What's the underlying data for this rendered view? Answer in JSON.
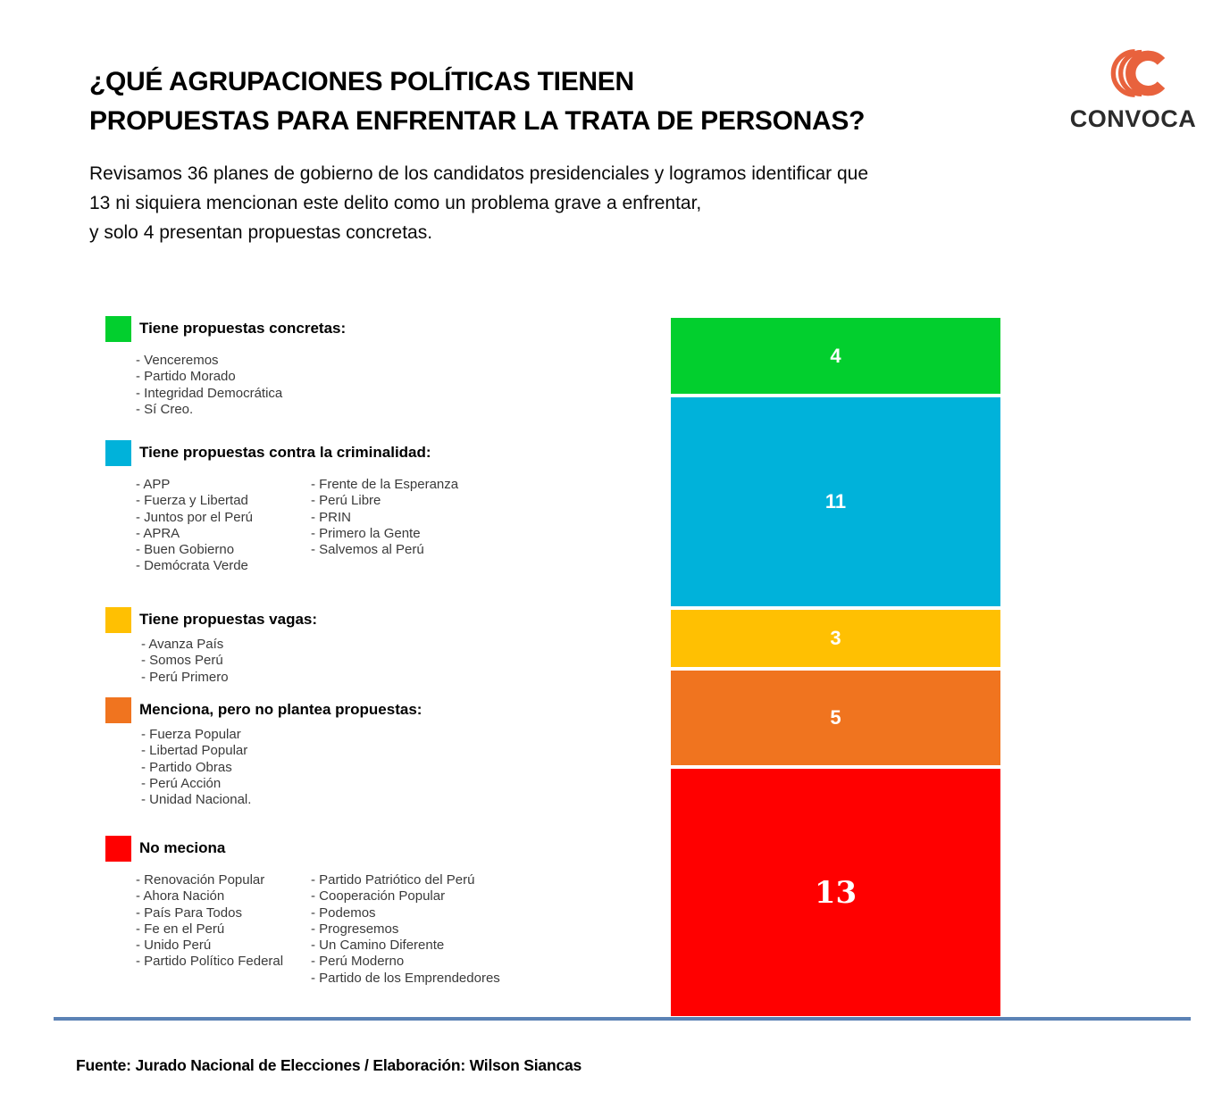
{
  "header": {
    "title_lines": [
      "¿QUÉ AGRUPACIONES POLÍTICAS TIENEN",
      "PROPUESTAS PARA ENFRENTAR LA TRATA DE PERSONAS?"
    ],
    "intro_lines": [
      "Revisamos 36 planes de gobierno de los candidatos presidenciales y logramos identificar que",
      "13 ni siquiera mencionan este delito como un problema grave a enfrentar,",
      "y solo 4 presentan propuestas concretas."
    ]
  },
  "logo": {
    "text": "CONVOCA",
    "color": "#E8623D"
  },
  "legend": {
    "groups": [
      {
        "label": "Tiene propuestas concretas:",
        "color": "#02CF2E",
        "columns": [
          [
            "Venceremos",
            "Partido Morado",
            "Integridad Democrática",
            "Sí Creo."
          ]
        ]
      },
      {
        "label": "Tiene propuestas contra la criminalidad:",
        "color": "#00B2DA",
        "columns": [
          [
            "APP",
            "Fuerza y Libertad",
            "Juntos por el Perú",
            "APRA",
            "Buen Gobierno",
            "Demócrata Verde"
          ],
          [
            "Frente de la Esperanza",
            "Perú Libre",
            "PRIN",
            "Primero la Gente",
            "Salvemos al Perú"
          ]
        ]
      },
      {
        "label": "Tiene propuestas vagas:",
        "color": "#FFC002",
        "columns": [
          [
            "Avanza País",
            "Somos Perú",
            "Perú Primero"
          ]
        ]
      },
      {
        "label": "Menciona, pero no plantea propuestas:",
        "color": "#F0741F",
        "columns": [
          [
            "Fuerza Popular",
            "Libertad Popular",
            "Partido Obras",
            "Perú Acción",
            "Unidad Nacional."
          ]
        ]
      },
      {
        "label": "No meciona",
        "color": "#FF0000",
        "columns": [
          [
            "Renovación Popular",
            "Ahora Nación",
            "País Para Todos",
            "Fe en el Perú",
            "Unido Perú",
            "Partido Político Federal"
          ],
          [
            "Partido Patriótico del Perú",
            "Cooperación Popular",
            "Podemos",
            "Progresemos",
            "Un Camino Diferente",
            "Perú Moderno",
            "Partido de los Emprendedores"
          ]
        ]
      }
    ]
  },
  "chart_data": {
    "type": "bar",
    "stacked": true,
    "title": "Planes de gobierno según tipo de propuesta sobre trata de personas",
    "total": 36,
    "categories": [
      "Tiene propuestas concretas",
      "Tiene propuestas contra la criminalidad",
      "Tiene propuestas vagas",
      "Menciona, pero no plantea propuestas",
      "No meciona"
    ],
    "values": [
      4,
      11,
      3,
      5,
      13
    ],
    "value_labels": [
      "4",
      "11",
      "3",
      "5",
      "13"
    ],
    "colors": [
      "#02CF2E",
      "#00B2DA",
      "#FFC002",
      "#F0741F",
      "#FF0000"
    ],
    "legend_position": "left",
    "grid": false
  },
  "footer": {
    "source": "Fuente: Jurado Nacional de Elecciones / Elaboración: Wilson Siancas"
  }
}
